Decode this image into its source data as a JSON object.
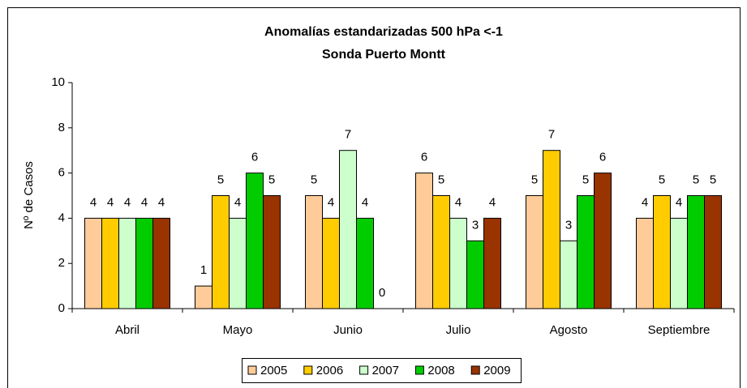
{
  "chart_data": {
    "type": "bar",
    "title": [
      "Anomalías estandarizadas 500 hPa <-1",
      "Sonda Puerto Montt"
    ],
    "y_label": "Nº de Casos",
    "categories": [
      "Abril",
      "Mayo",
      "Junio",
      "Julio",
      "Agosto",
      "Septiembre"
    ],
    "series": [
      {
        "name": "2005",
        "color": "#ffcc99",
        "values": [
          4,
          1,
          5,
          6,
          5,
          4
        ]
      },
      {
        "name": "2006",
        "color": "#ffcc00",
        "values": [
          4,
          5,
          4,
          5,
          7,
          5
        ]
      },
      {
        "name": "2007",
        "color": "#ccffcc",
        "values": [
          4,
          4,
          7,
          4,
          3,
          4
        ]
      },
      {
        "name": "2008",
        "color": "#00cc00",
        "values": [
          4,
          6,
          4,
          3,
          5,
          5
        ]
      },
      {
        "name": "2009",
        "color": "#993300",
        "values": [
          4,
          5,
          0,
          4,
          6,
          5
        ]
      }
    ],
    "ylim": [
      0,
      10
    ],
    "yticks": [
      0,
      2,
      4,
      6,
      8,
      10
    ],
    "legend": "bottom"
  }
}
